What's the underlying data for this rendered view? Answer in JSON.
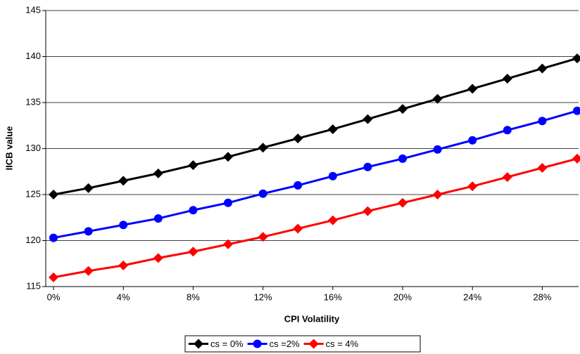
{
  "chart_data": {
    "type": "line",
    "x_label": "CPI Volatility",
    "y_label": "IICB value",
    "x": [
      0,
      2,
      4,
      6,
      8,
      10,
      12,
      14,
      16,
      18,
      20,
      22,
      24,
      26,
      28,
      30
    ],
    "xlim": [
      0,
      30
    ],
    "xticks": [
      {
        "value": 0,
        "label": "0%"
      },
      {
        "value": 4,
        "label": "4%"
      },
      {
        "value": 8,
        "label": "8%"
      },
      {
        "value": 12,
        "label": "12%"
      },
      {
        "value": 16,
        "label": "16%"
      },
      {
        "value": 20,
        "label": "20%"
      },
      {
        "value": 24,
        "label": "24%"
      },
      {
        "value": 28,
        "label": "28%"
      }
    ],
    "ylim": [
      115,
      145
    ],
    "yticks": [
      115,
      120,
      125,
      130,
      135,
      140,
      145
    ],
    "grid": true,
    "legend": "bottom",
    "series": [
      {
        "name": "cs = 0%",
        "color": "#000000",
        "marker": "diamond",
        "values": [
          125,
          125.7,
          126.5,
          127.3,
          128.2,
          129.1,
          130.1,
          131.1,
          132.1,
          133.2,
          134.3,
          135.4,
          136.5,
          137.6,
          138.7,
          139.8
        ]
      },
      {
        "name": "cs =2%",
        "color": "#0000ff",
        "marker": "circle",
        "values": [
          120.3,
          121.0,
          121.7,
          122.4,
          123.3,
          124.1,
          125.1,
          126.0,
          127.0,
          128.0,
          128.9,
          129.9,
          130.9,
          132.0,
          133.0,
          134.1
        ]
      },
      {
        "name": "cs = 4%",
        "color": "#ff0000",
        "marker": "diamond",
        "values": [
          116.0,
          116.7,
          117.3,
          118.1,
          118.8,
          119.6,
          120.4,
          121.3,
          122.2,
          123.2,
          124.1,
          125.0,
          125.9,
          126.9,
          127.9,
          128.9
        ]
      }
    ]
  }
}
